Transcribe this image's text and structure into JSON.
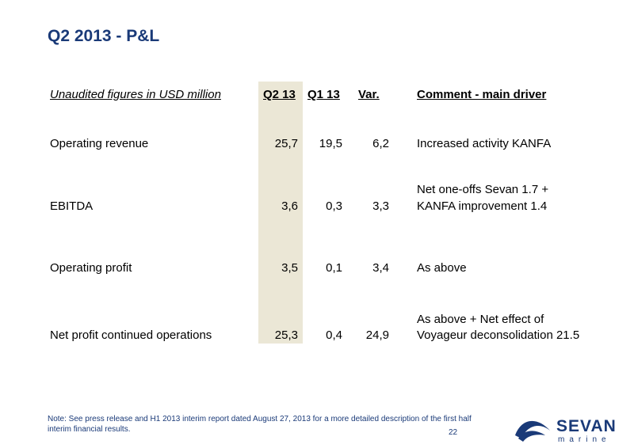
{
  "title": "Q2 2013 - P&L",
  "table": {
    "header": {
      "label": "Unaudited figures in USD million",
      "q2": "Q2 13",
      "q1": "Q1 13",
      "var": "Var.",
      "comment": "Comment - main driver"
    },
    "rows": [
      {
        "label": "Operating revenue",
        "q2": "25,7",
        "q1": "19,5",
        "var": "6,2",
        "comment_lines": [
          "Increased activity KANFA"
        ]
      },
      {
        "label": "EBITDA",
        "q2": "3,6",
        "q1": "0,3",
        "var": "3,3",
        "comment_lines": [
          "Net one-offs Sevan 1.7 +",
          "KANFA improvement 1.4"
        ]
      },
      {
        "label": "Operating profit",
        "q2": "3,5",
        "q1": "0,1",
        "var": "3,4",
        "comment_lines": [
          "As above"
        ]
      },
      {
        "label": "Net profit continued operations",
        "q2": "25,3",
        "q1": "0,4",
        "var": "24,9",
        "comment_lines": [
          "As above + Net effect of",
          "Voyageur deconsolidation 21.5"
        ]
      }
    ]
  },
  "footnote": "Note: See press release and H1 2013 interim report dated August 27, 2013 for a more detailed description of the first half interim financial results.",
  "page_number": "22",
  "logo": {
    "word": "SEVAN",
    "subword": "marine",
    "color": "#1a3a78",
    "icon": "sevan-wave-logo-icon"
  }
}
